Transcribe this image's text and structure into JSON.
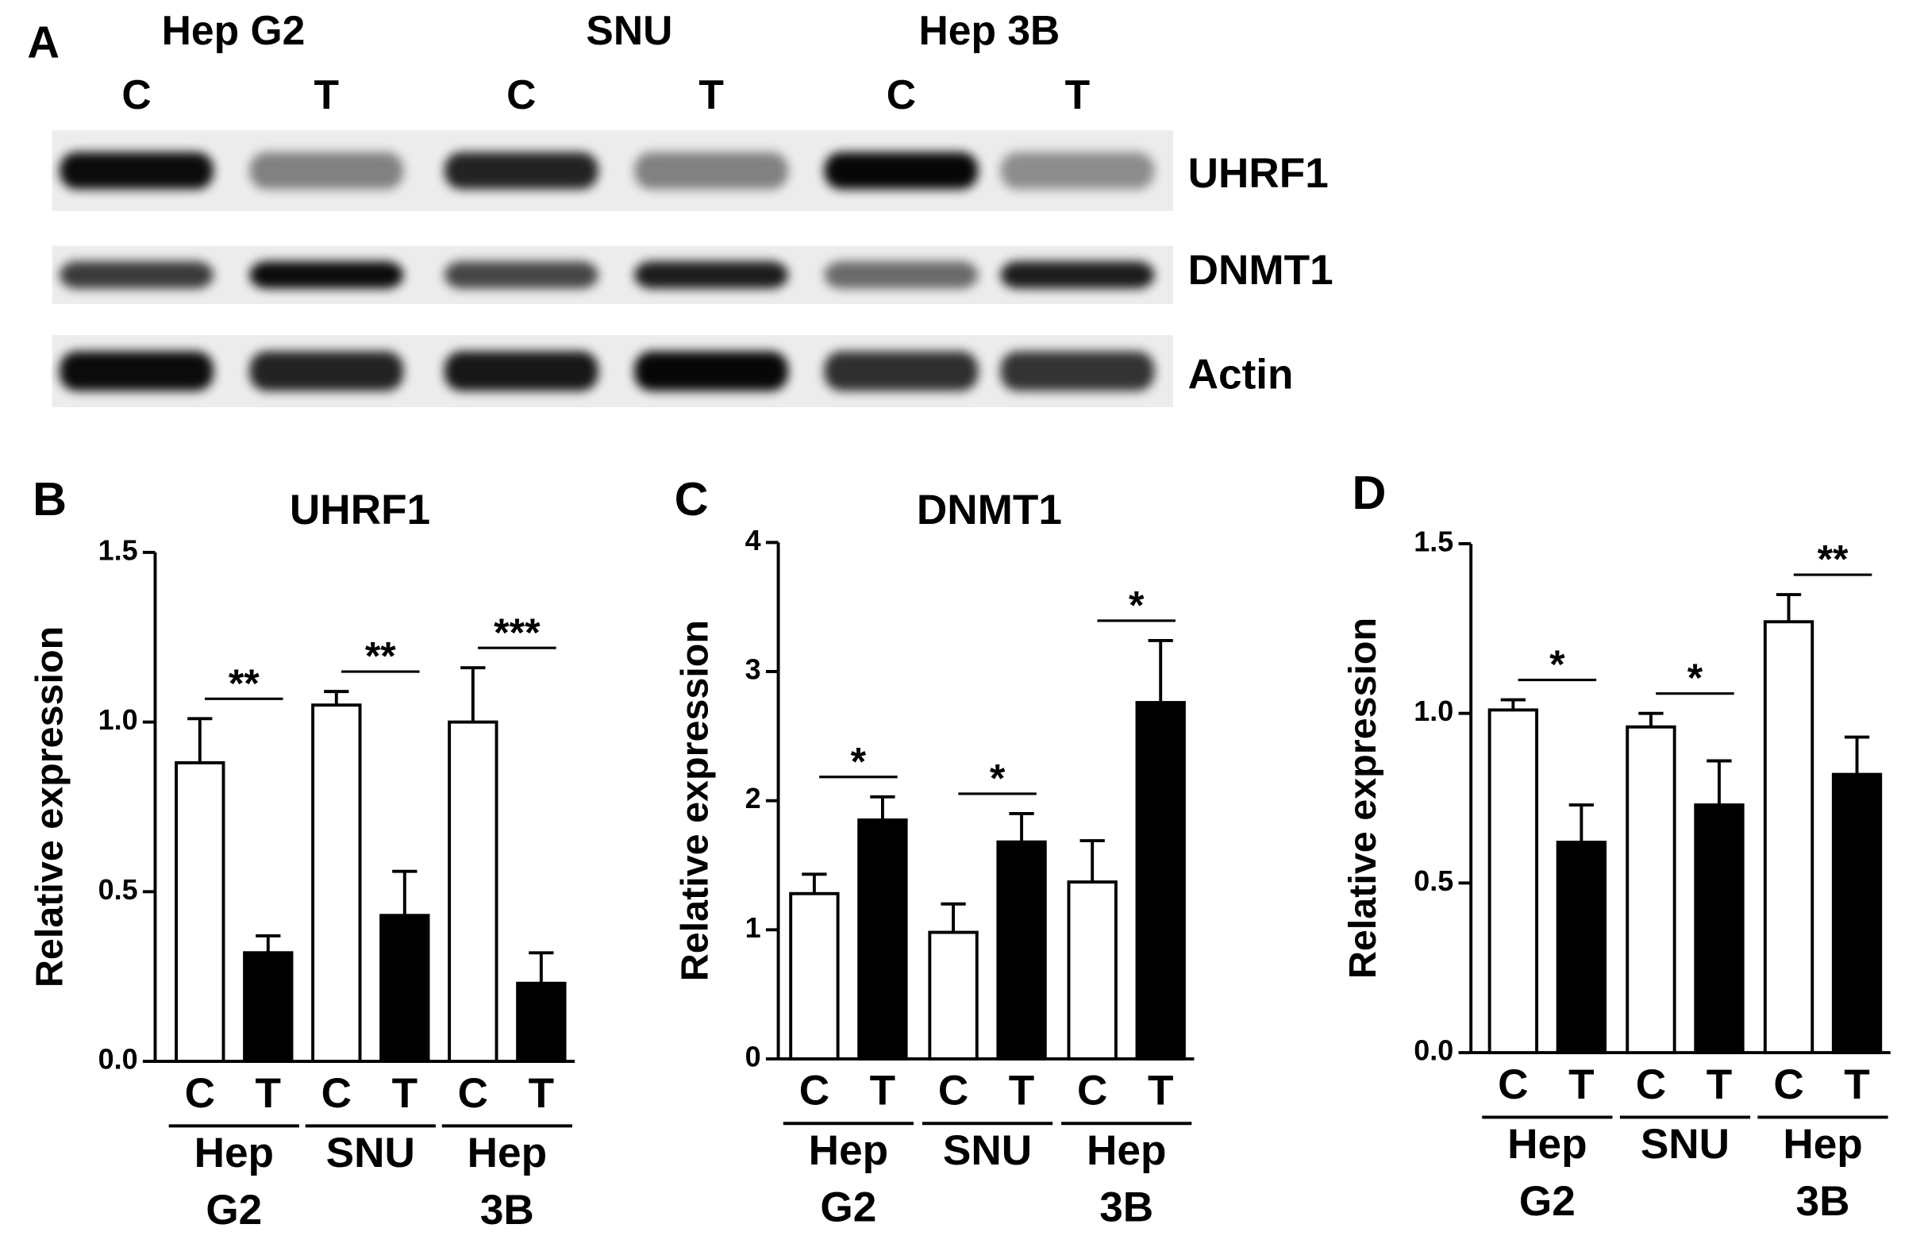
{
  "blot": {
    "panel": "A",
    "cell_lines": [
      "Hep G2",
      "SNU",
      "Hep 3B"
    ],
    "lanes": [
      "C",
      "T",
      "C",
      "T",
      "C",
      "T"
    ],
    "proteins": [
      "UHRF1",
      "DNMT1",
      "Actin"
    ]
  },
  "chart_data": [
    {
      "type": "bar",
      "panel": "B",
      "title": "UHRF1",
      "y_label": "Relative expression",
      "categories": [
        "C",
        "T",
        "C",
        "T",
        "C",
        "T"
      ],
      "groups": [
        [
          "Hep",
          "G2"
        ],
        [
          "SNU"
        ],
        [
          "Hep",
          "3B"
        ]
      ],
      "values": [
        0.88,
        0.32,
        1.05,
        0.43,
        1.0,
        0.23
      ],
      "errors": [
        0.13,
        0.05,
        0.04,
        0.13,
        0.16,
        0.09
      ],
      "colors": [
        "#ffffff",
        "#000000",
        "#ffffff",
        "#000000",
        "#ffffff",
        "#000000"
      ],
      "significance": [
        "**",
        "**",
        "***"
      ],
      "ylim": [
        0,
        1.5
      ],
      "yticks": [
        {
          "value": 0,
          "label": "0.0"
        },
        {
          "value": 0.5,
          "label": "0.5"
        },
        {
          "value": 1,
          "label": "1.0"
        },
        {
          "value": 1.5,
          "label": "1.5"
        }
      ]
    },
    {
      "type": "bar",
      "panel": "C",
      "title": "DNMT1",
      "y_label": "Relative expression",
      "categories": [
        "C",
        "T",
        "C",
        "T",
        "C",
        "T"
      ],
      "groups": [
        [
          "Hep",
          "G2"
        ],
        [
          "SNU"
        ],
        [
          "Hep",
          "3B"
        ]
      ],
      "values": [
        1.28,
        1.85,
        0.98,
        1.68,
        1.37,
        2.76
      ],
      "errors": [
        0.15,
        0.18,
        0.22,
        0.22,
        0.32,
        0.48
      ],
      "colors": [
        "#ffffff",
        "#000000",
        "#ffffff",
        "#000000",
        "#ffffff",
        "#000000"
      ],
      "significance": [
        "*",
        "*",
        "*"
      ],
      "ylim": [
        0,
        4
      ],
      "yticks": [
        0,
        1,
        2,
        3,
        4
      ]
    },
    {
      "type": "bar",
      "panel": "D",
      "y_label": "Relative expression",
      "categories": [
        "C",
        "T",
        "C",
        "T",
        "C",
        "T"
      ],
      "groups": [
        [
          "Hep",
          "G2"
        ],
        [
          "SNU"
        ],
        [
          "Hep",
          "3B"
        ]
      ],
      "values": [
        1.01,
        0.62,
        0.96,
        0.73,
        1.27,
        0.82
      ],
      "errors": [
        0.03,
        0.11,
        0.04,
        0.13,
        0.08,
        0.11
      ],
      "colors": [
        "#ffffff",
        "#000000",
        "#ffffff",
        "#000000",
        "#ffffff",
        "#000000"
      ],
      "significance": [
        "*",
        "*",
        "**"
      ],
      "ylim": [
        0,
        1.5
      ],
      "yticks": [
        {
          "value": 0,
          "label": "0.0"
        },
        {
          "value": 0.5,
          "label": "0.5"
        },
        {
          "value": 1,
          "label": "1.0"
        },
        {
          "value": 1.5,
          "label": "1.5"
        }
      ]
    }
  ]
}
